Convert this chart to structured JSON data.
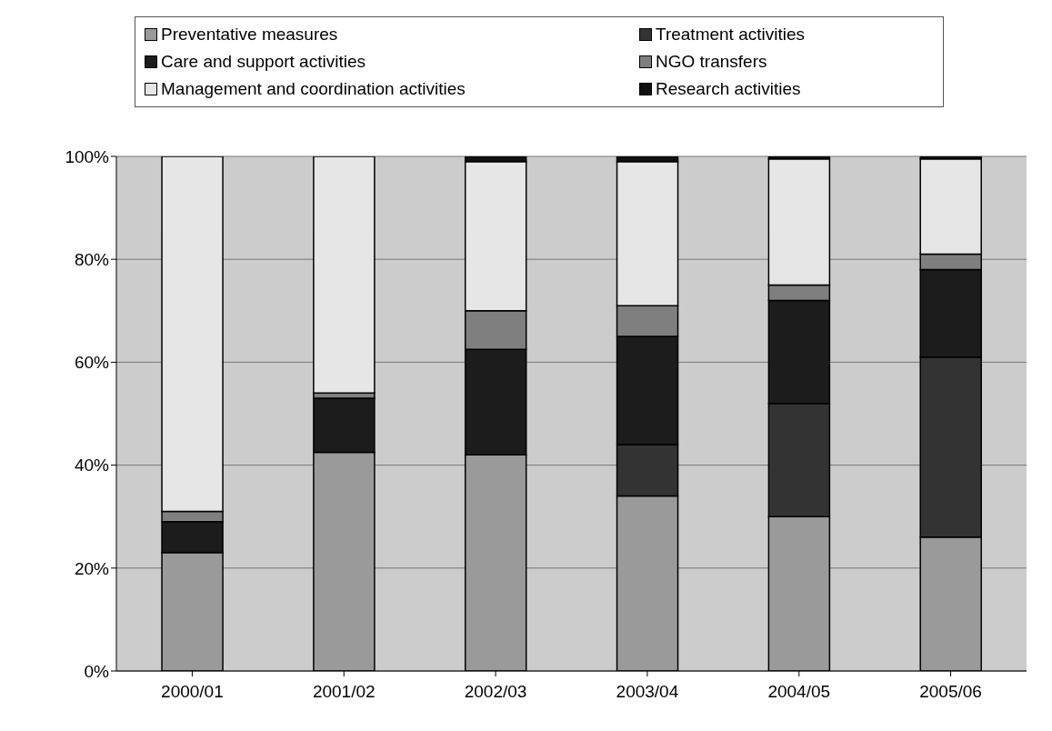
{
  "chart_data": {
    "type": "bar",
    "stacked": true,
    "categories": [
      "2000/01",
      "2001/02",
      "2002/03",
      "2003/04",
      "2004/05",
      "2005/06"
    ],
    "series": [
      {
        "name": "Preventative measures",
        "color": "#9a9a9a",
        "values": [
          23,
          42.5,
          42,
          34,
          30,
          26
        ]
      },
      {
        "name": "Treatment activities",
        "color": "#333333",
        "values": [
          0,
          0,
          0,
          10,
          22,
          35
        ]
      },
      {
        "name": "Care and support activities",
        "color": "#1c1c1c",
        "values": [
          6,
          10.5,
          20.5,
          21,
          20,
          17
        ]
      },
      {
        "name": "NGO transfers",
        "color": "#7f7f7f",
        "values": [
          2,
          1,
          7.5,
          6,
          3,
          3
        ]
      },
      {
        "name": "Management and coordination activities",
        "color": "#e6e6e6",
        "values": [
          69,
          46,
          29,
          28,
          24.5,
          18.5
        ]
      },
      {
        "name": "Research activities",
        "color": "#111111",
        "values": [
          0,
          0,
          1,
          1,
          0.5,
          0.5
        ]
      }
    ],
    "ylim": [
      0,
      100
    ],
    "yticks": [
      {
        "value": 0,
        "label": "0%"
      },
      {
        "value": 20,
        "label": "20%"
      },
      {
        "value": 40,
        "label": "40%"
      },
      {
        "value": 60,
        "label": "60%"
      },
      {
        "value": 80,
        "label": "80%"
      },
      {
        "value": 100,
        "label": "100%"
      }
    ],
    "grid": "y",
    "legend": "top"
  }
}
